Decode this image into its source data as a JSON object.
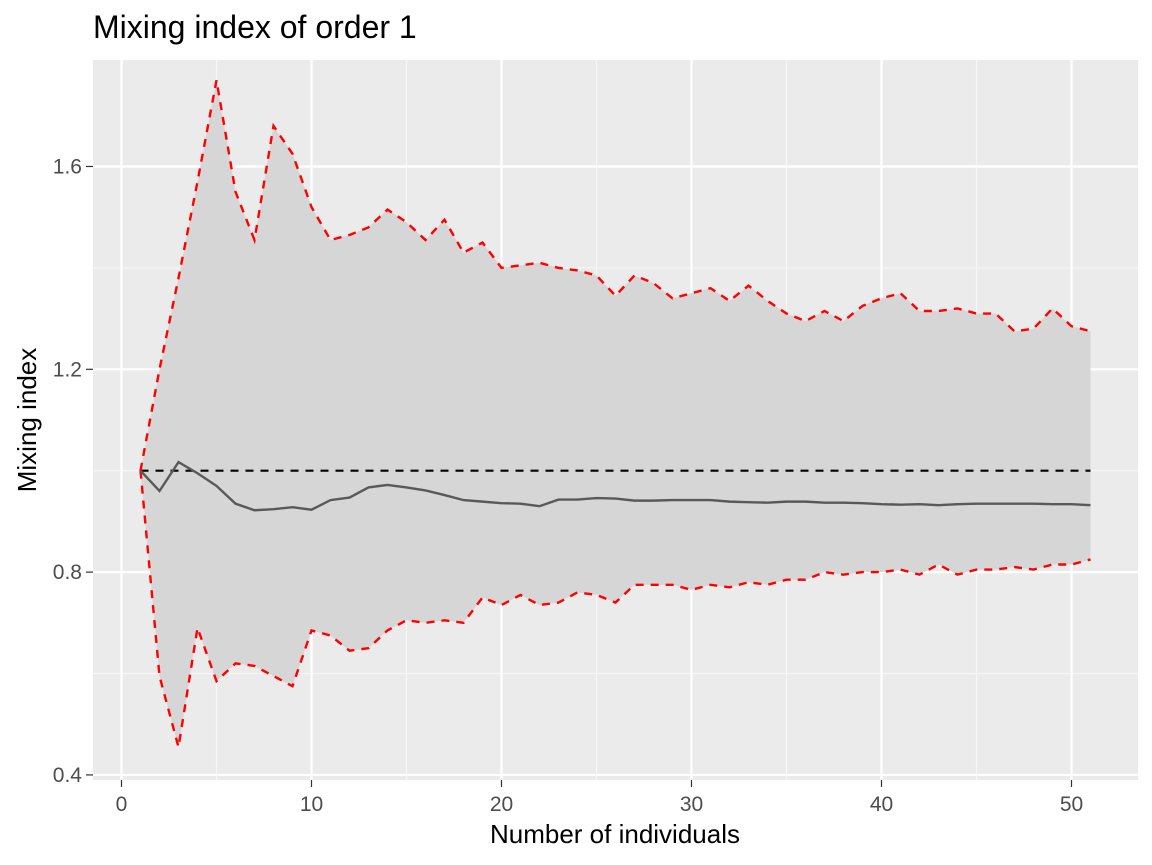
{
  "chart_data": {
    "type": "line",
    "title": "Mixing index of order 1",
    "xlabel": "Number of individuals",
    "ylabel": "Mixing index",
    "xlim": [
      -1.5,
      53.5
    ],
    "ylim": [
      0.39,
      1.81
    ],
    "x_ticks": [
      0,
      10,
      20,
      30,
      40,
      50
    ],
    "y_ticks": [
      0.4,
      0.8,
      1.2,
      1.6
    ],
    "x_tick_labels": [
      "0",
      "10",
      "20",
      "30",
      "40",
      "50"
    ],
    "y_tick_labels": [
      "0.4",
      "0.8",
      "1.2",
      "1.6"
    ],
    "grid": true,
    "reference_line": 1.0,
    "x": [
      1,
      2,
      3,
      4,
      5,
      6,
      7,
      8,
      9,
      10,
      11,
      12,
      13,
      14,
      15,
      16,
      17,
      18,
      19,
      20,
      21,
      22,
      23,
      24,
      25,
      26,
      27,
      28,
      29,
      30,
      31,
      32,
      33,
      34,
      35,
      36,
      37,
      38,
      39,
      40,
      41,
      42,
      43,
      44,
      45,
      46,
      47,
      48,
      49,
      50,
      51
    ],
    "series": [
      {
        "role": "observed",
        "color": "#595959",
        "values": [
          1.0,
          0.96,
          1.017,
          0.995,
          0.97,
          0.935,
          0.922,
          0.924,
          0.928,
          0.923,
          0.942,
          0.947,
          0.967,
          0.972,
          0.967,
          0.961,
          0.952,
          0.942,
          0.939,
          0.936,
          0.935,
          0.93,
          0.943,
          0.943,
          0.946,
          0.945,
          0.941,
          0.941,
          0.942,
          0.942,
          0.942,
          0.939,
          0.938,
          0.937,
          0.939,
          0.939,
          0.937,
          0.937,
          0.936,
          0.934,
          0.933,
          0.934,
          0.932,
          0.934,
          0.935,
          0.935,
          0.935,
          0.935,
          0.934,
          0.934,
          0.932
        ]
      },
      {
        "role": "upper",
        "color": "#ff0000",
        "values": [
          1.0,
          1.2,
          1.38,
          1.57,
          1.77,
          1.55,
          1.455,
          1.68,
          1.625,
          1.52,
          1.455,
          1.465,
          1.48,
          1.515,
          1.49,
          1.455,
          1.495,
          1.43,
          1.45,
          1.4,
          1.405,
          1.41,
          1.4,
          1.395,
          1.385,
          1.345,
          1.385,
          1.37,
          1.34,
          1.35,
          1.36,
          1.335,
          1.365,
          1.335,
          1.31,
          1.295,
          1.315,
          1.295,
          1.325,
          1.34,
          1.35,
          1.315,
          1.315,
          1.32,
          1.31,
          1.31,
          1.275,
          1.28,
          1.32,
          1.285,
          1.275
        ]
      },
      {
        "role": "lower",
        "color": "#ff0000",
        "values": [
          1.0,
          0.595,
          0.455,
          0.69,
          0.585,
          0.62,
          0.615,
          0.595,
          0.575,
          0.685,
          0.675,
          0.645,
          0.65,
          0.685,
          0.705,
          0.7,
          0.705,
          0.7,
          0.75,
          0.735,
          0.755,
          0.735,
          0.74,
          0.76,
          0.755,
          0.74,
          0.775,
          0.775,
          0.775,
          0.765,
          0.775,
          0.77,
          0.78,
          0.775,
          0.785,
          0.785,
          0.8,
          0.795,
          0.8,
          0.8,
          0.805,
          0.795,
          0.815,
          0.795,
          0.805,
          0.805,
          0.81,
          0.805,
          0.815,
          0.815,
          0.825
        ]
      }
    ]
  }
}
